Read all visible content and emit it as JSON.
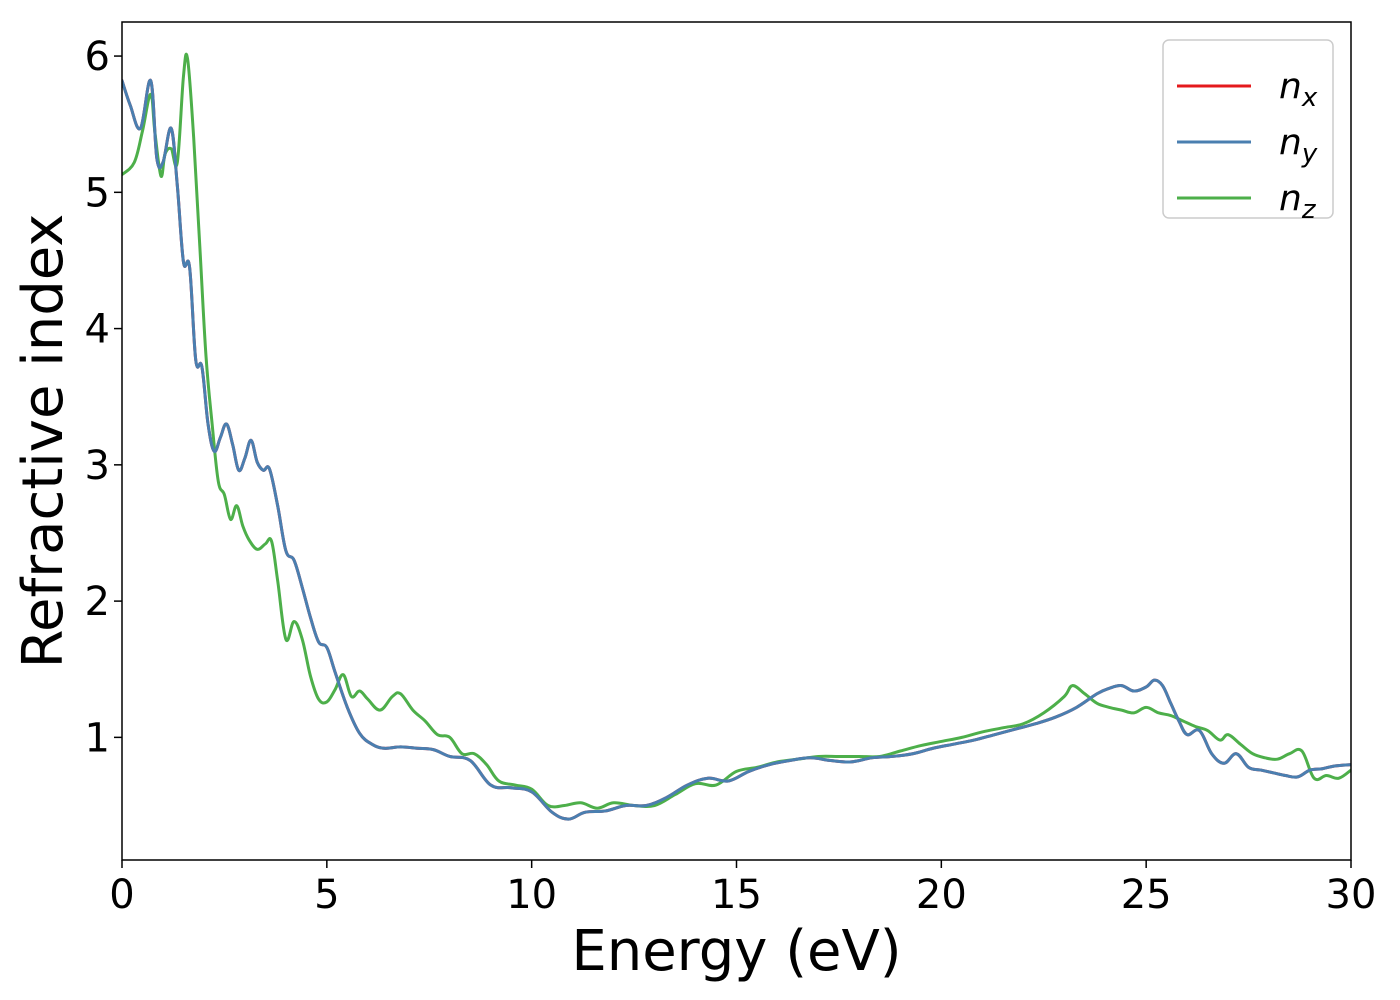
{
  "chart_data": {
    "type": "line",
    "title": "",
    "xlabel": "Energy (eV)",
    "ylabel": "Refractive index",
    "xlim": [
      0,
      30
    ],
    "ylim": [
      0.1,
      6.25
    ],
    "xticks": [
      0,
      5,
      10,
      15,
      20,
      25,
      30
    ],
    "yticks": [
      1,
      2,
      3,
      4,
      5,
      6
    ],
    "grid": false,
    "legend_position": "top-right",
    "series": [
      {
        "name": "n_x",
        "base": "n",
        "sub": "x",
        "color": "#e41a1c",
        "x": [
          0,
          0.2,
          0.45,
          0.7,
          0.85,
          1.0,
          1.2,
          1.35,
          1.5,
          1.65,
          1.8,
          1.95,
          2.1,
          2.25,
          2.4,
          2.55,
          2.7,
          2.85,
          3.0,
          3.15,
          3.3,
          3.45,
          3.6,
          3.8,
          4.0,
          4.2,
          4.4,
          4.6,
          4.8,
          5.0,
          5.2,
          5.5,
          5.8,
          6.1,
          6.4,
          6.8,
          7.2,
          7.6,
          8.0,
          8.5,
          9.0,
          9.5,
          10.0,
          10.5,
          10.9,
          11.3,
          11.8,
          12.3,
          12.8,
          13.3,
          13.8,
          14.3,
          14.8,
          15.3,
          15.8,
          16.3,
          16.8,
          17.3,
          17.8,
          18.3,
          18.8,
          19.3,
          19.8,
          20.3,
          20.8,
          21.3,
          21.8,
          22.3,
          22.8,
          23.3,
          23.8,
          24.1,
          24.4,
          24.7,
          25.0,
          25.2,
          25.4,
          25.6,
          25.8,
          26.0,
          26.3,
          26.6,
          26.9,
          27.2,
          27.5,
          27.8,
          28.1,
          28.4,
          28.7,
          29.0,
          29.3,
          29.6,
          30.0
        ],
        "values": [
          5.82,
          5.64,
          5.47,
          5.82,
          5.25,
          5.22,
          5.47,
          5.05,
          4.49,
          4.45,
          3.77,
          3.72,
          3.3,
          3.1,
          3.2,
          3.3,
          3.15,
          2.96,
          3.05,
          3.18,
          3.02,
          2.96,
          2.97,
          2.7,
          2.37,
          2.3,
          2.1,
          1.88,
          1.7,
          1.66,
          1.48,
          1.22,
          1.03,
          0.95,
          0.92,
          0.93,
          0.92,
          0.91,
          0.86,
          0.83,
          0.65,
          0.63,
          0.6,
          0.45,
          0.4,
          0.45,
          0.46,
          0.5,
          0.5,
          0.56,
          0.65,
          0.7,
          0.68,
          0.75,
          0.8,
          0.83,
          0.85,
          0.83,
          0.82,
          0.85,
          0.86,
          0.88,
          0.92,
          0.95,
          0.98,
          1.02,
          1.06,
          1.1,
          1.15,
          1.22,
          1.32,
          1.36,
          1.38,
          1.34,
          1.37,
          1.42,
          1.38,
          1.25,
          1.12,
          1.02,
          1.05,
          0.88,
          0.81,
          0.88,
          0.78,
          0.76,
          0.74,
          0.72,
          0.71,
          0.76,
          0.77,
          0.79,
          0.8
        ]
      },
      {
        "name": "n_y",
        "base": "n",
        "sub": "y",
        "color": "#4a7fb0",
        "x": [
          0,
          0.2,
          0.45,
          0.7,
          0.85,
          1.0,
          1.2,
          1.35,
          1.5,
          1.65,
          1.8,
          1.95,
          2.1,
          2.25,
          2.4,
          2.55,
          2.7,
          2.85,
          3.0,
          3.15,
          3.3,
          3.45,
          3.6,
          3.8,
          4.0,
          4.2,
          4.4,
          4.6,
          4.8,
          5.0,
          5.2,
          5.5,
          5.8,
          6.1,
          6.4,
          6.8,
          7.2,
          7.6,
          8.0,
          8.5,
          9.0,
          9.5,
          10.0,
          10.5,
          10.9,
          11.3,
          11.8,
          12.3,
          12.8,
          13.3,
          13.8,
          14.3,
          14.8,
          15.3,
          15.8,
          16.3,
          16.8,
          17.3,
          17.8,
          18.3,
          18.8,
          19.3,
          19.8,
          20.3,
          20.8,
          21.3,
          21.8,
          22.3,
          22.8,
          23.3,
          23.8,
          24.1,
          24.4,
          24.7,
          25.0,
          25.2,
          25.4,
          25.6,
          25.8,
          26.0,
          26.3,
          26.6,
          26.9,
          27.2,
          27.5,
          27.8,
          28.1,
          28.4,
          28.7,
          29.0,
          29.3,
          29.6,
          30.0
        ],
        "values": [
          5.82,
          5.64,
          5.47,
          5.82,
          5.25,
          5.22,
          5.47,
          5.05,
          4.49,
          4.45,
          3.77,
          3.72,
          3.3,
          3.1,
          3.2,
          3.3,
          3.15,
          2.96,
          3.05,
          3.18,
          3.02,
          2.96,
          2.97,
          2.7,
          2.37,
          2.3,
          2.1,
          1.88,
          1.7,
          1.66,
          1.48,
          1.22,
          1.03,
          0.95,
          0.92,
          0.93,
          0.92,
          0.91,
          0.86,
          0.83,
          0.65,
          0.63,
          0.6,
          0.45,
          0.4,
          0.45,
          0.46,
          0.5,
          0.5,
          0.56,
          0.65,
          0.7,
          0.68,
          0.75,
          0.8,
          0.83,
          0.85,
          0.83,
          0.82,
          0.85,
          0.86,
          0.88,
          0.92,
          0.95,
          0.98,
          1.02,
          1.06,
          1.1,
          1.15,
          1.22,
          1.32,
          1.36,
          1.38,
          1.34,
          1.37,
          1.42,
          1.38,
          1.25,
          1.12,
          1.02,
          1.05,
          0.88,
          0.81,
          0.88,
          0.78,
          0.76,
          0.74,
          0.72,
          0.71,
          0.76,
          0.77,
          0.79,
          0.8
        ]
      },
      {
        "name": "n_z",
        "base": "n",
        "sub": "z",
        "color": "#4daf4a",
        "x": [
          0,
          0.3,
          0.5,
          0.7,
          0.8,
          0.95,
          1.05,
          1.2,
          1.35,
          1.5,
          1.6,
          1.75,
          1.9,
          2.05,
          2.2,
          2.35,
          2.5,
          2.65,
          2.8,
          2.95,
          3.1,
          3.3,
          3.5,
          3.65,
          3.8,
          4.0,
          4.2,
          4.4,
          4.6,
          4.8,
          5.0,
          5.2,
          5.4,
          5.6,
          5.8,
          6.0,
          6.3,
          6.6,
          6.8,
          7.1,
          7.4,
          7.7,
          8.0,
          8.3,
          8.6,
          8.9,
          9.2,
          9.6,
          10.0,
          10.4,
          10.8,
          11.2,
          11.6,
          12.0,
          12.5,
          13.0,
          13.5,
          14.0,
          14.5,
          15.0,
          15.5,
          16.0,
          16.5,
          17.0,
          17.5,
          18.0,
          18.5,
          19.0,
          19.5,
          20.0,
          20.5,
          21.0,
          21.5,
          22.0,
          22.5,
          23.0,
          23.2,
          23.5,
          23.8,
          24.1,
          24.4,
          24.7,
          25.0,
          25.3,
          25.6,
          25.9,
          26.2,
          26.5,
          26.8,
          27.0,
          27.3,
          27.6,
          27.9,
          28.2,
          28.5,
          28.8,
          29.1,
          29.4,
          29.7,
          30.0
        ],
        "values": [
          5.13,
          5.22,
          5.45,
          5.72,
          5.45,
          5.12,
          5.28,
          5.32,
          5.22,
          5.85,
          5.98,
          5.4,
          4.6,
          3.8,
          3.3,
          2.88,
          2.78,
          2.6,
          2.7,
          2.55,
          2.45,
          2.38,
          2.42,
          2.44,
          2.15,
          1.72,
          1.85,
          1.72,
          1.45,
          1.28,
          1.26,
          1.35,
          1.46,
          1.3,
          1.34,
          1.28,
          1.2,
          1.3,
          1.32,
          1.2,
          1.12,
          1.02,
          1.0,
          0.88,
          0.88,
          0.8,
          0.68,
          0.65,
          0.62,
          0.5,
          0.5,
          0.52,
          0.48,
          0.52,
          0.5,
          0.5,
          0.58,
          0.66,
          0.65,
          0.75,
          0.78,
          0.82,
          0.84,
          0.86,
          0.86,
          0.86,
          0.86,
          0.9,
          0.94,
          0.97,
          1.0,
          1.04,
          1.07,
          1.1,
          1.18,
          1.3,
          1.38,
          1.32,
          1.25,
          1.22,
          1.2,
          1.18,
          1.22,
          1.18,
          1.16,
          1.12,
          1.08,
          1.05,
          0.98,
          1.02,
          0.95,
          0.88,
          0.85,
          0.84,
          0.88,
          0.9,
          0.7,
          0.72,
          0.7,
          0.76
        ]
      }
    ]
  }
}
